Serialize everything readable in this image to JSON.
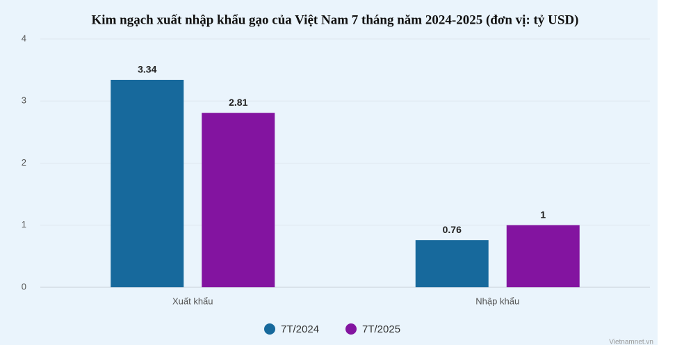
{
  "chart_data": {
    "type": "bar",
    "title": "Kim ngạch xuất nhập khẩu gạo của Việt Nam 7 tháng năm 2024-2025 (đơn vị: tỷ USD)",
    "categories": [
      "Xuất khẩu",
      "Nhập khẩu"
    ],
    "series": [
      {
        "name": "7T/2024",
        "color": "#17699c",
        "values": [
          3.34,
          0.76
        ]
      },
      {
        "name": "7T/2025",
        "color": "#8314a0",
        "values": [
          2.81,
          1
        ]
      }
    ],
    "ylim": [
      0,
      4
    ],
    "yticks": [
      0,
      1,
      2,
      3,
      4
    ],
    "grid": true,
    "source": "Vietnamnet.vn"
  }
}
